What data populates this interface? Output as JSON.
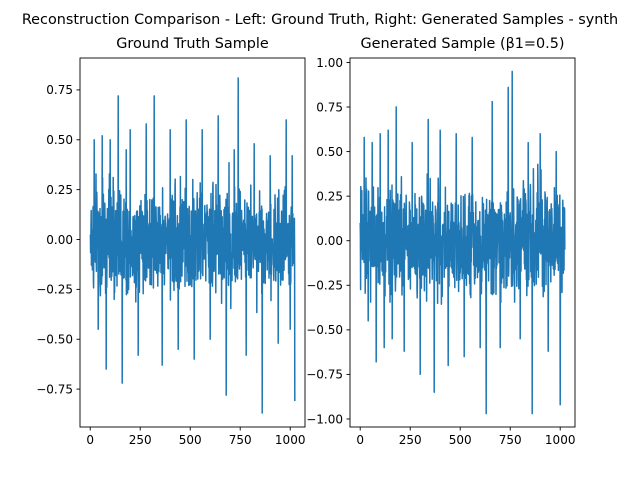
{
  "figure": {
    "suptitle": "Reconstruction Comparison - Left: Ground Truth, Right: Generated Samples - synth"
  },
  "colors": {
    "series": "#1f77b4",
    "axes": "#000000",
    "background": "#ffffff"
  },
  "chart_data": [
    {
      "type": "line",
      "title": "Ground Truth Sample",
      "xlabel": "",
      "ylabel": "",
      "xlim": [
        -51,
        1074
      ],
      "ylim": [
        -0.94,
        0.91
      ],
      "xticks": [
        0,
        250,
        500,
        750,
        1000
      ],
      "xtick_labels": [
        "0",
        "250",
        "500",
        "750",
        "1000"
      ],
      "yticks": [
        -0.75,
        -0.5,
        -0.25,
        0.0,
        0.25,
        0.5,
        0.75
      ],
      "ytick_labels": [
        "−0.75",
        "−0.50",
        "−0.25",
        "0.00",
        "0.25",
        "0.50",
        "0.75"
      ],
      "grid": false,
      "series": [
        {
          "color": "#1f77b4",
          "n_points": 1024,
          "x": [
            0,
            20,
            40,
            60,
            80,
            100,
            120,
            140,
            160,
            180,
            200,
            240,
            280,
            320,
            360,
            400,
            440,
            480,
            520,
            560,
            600,
            640,
            680,
            720,
            740,
            780,
            820,
            860,
            900,
            940,
            980,
            1000,
            1010,
            1023
          ],
          "y": [
            0.02,
            0.5,
            -0.45,
            0.52,
            -0.65,
            0.5,
            -0.3,
            0.72,
            -0.72,
            0.45,
            0.55,
            -0.58,
            0.58,
            0.72,
            -0.63,
            0.55,
            -0.55,
            0.6,
            -0.6,
            0.55,
            -0.5,
            0.62,
            -0.78,
            0.45,
            0.81,
            -0.58,
            0.48,
            -0.87,
            0.42,
            -0.52,
            0.6,
            -0.45,
            0.42,
            -0.81
          ]
        }
      ]
    },
    {
      "type": "line",
      "title": "Generated Sample (β1=0.5)",
      "xlabel": "",
      "ylabel": "",
      "xlim": [
        -51,
        1074
      ],
      "ylim": [
        -1.045,
        1.025
      ],
      "xticks": [
        0,
        250,
        500,
        750,
        1000
      ],
      "xtick_labels": [
        "0",
        "250",
        "500",
        "750",
        "1000"
      ],
      "yticks": [
        -1.0,
        -0.75,
        -0.5,
        -0.25,
        0.0,
        0.25,
        0.5,
        0.75,
        1.0
      ],
      "ytick_labels": [
        "−1.00",
        "−0.75",
        "−0.50",
        "−0.25",
        "0.00",
        "0.25",
        "0.50",
        "0.75",
        "1.00"
      ],
      "grid": false,
      "series": [
        {
          "color": "#1f77b4",
          "n_points": 1024,
          "x": [
            0,
            20,
            40,
            60,
            80,
            100,
            120,
            140,
            160,
            180,
            220,
            260,
            300,
            340,
            370,
            400,
            440,
            480,
            520,
            560,
            600,
            630,
            660,
            700,
            740,
            760,
            800,
            840,
            860,
            900,
            940,
            980,
            1000,
            1023
          ],
          "y": [
            0.1,
            0.58,
            -0.45,
            0.55,
            -0.68,
            0.6,
            -0.6,
            0.62,
            -0.55,
            0.75,
            -0.62,
            0.55,
            -0.75,
            0.68,
            -0.85,
            0.62,
            -0.7,
            0.6,
            -0.65,
            0.58,
            -0.6,
            -0.97,
            0.78,
            -0.6,
            0.86,
            0.95,
            -0.55,
            0.55,
            -0.97,
            0.6,
            -0.62,
            0.5,
            -0.92,
            -0.05
          ]
        }
      ]
    }
  ]
}
